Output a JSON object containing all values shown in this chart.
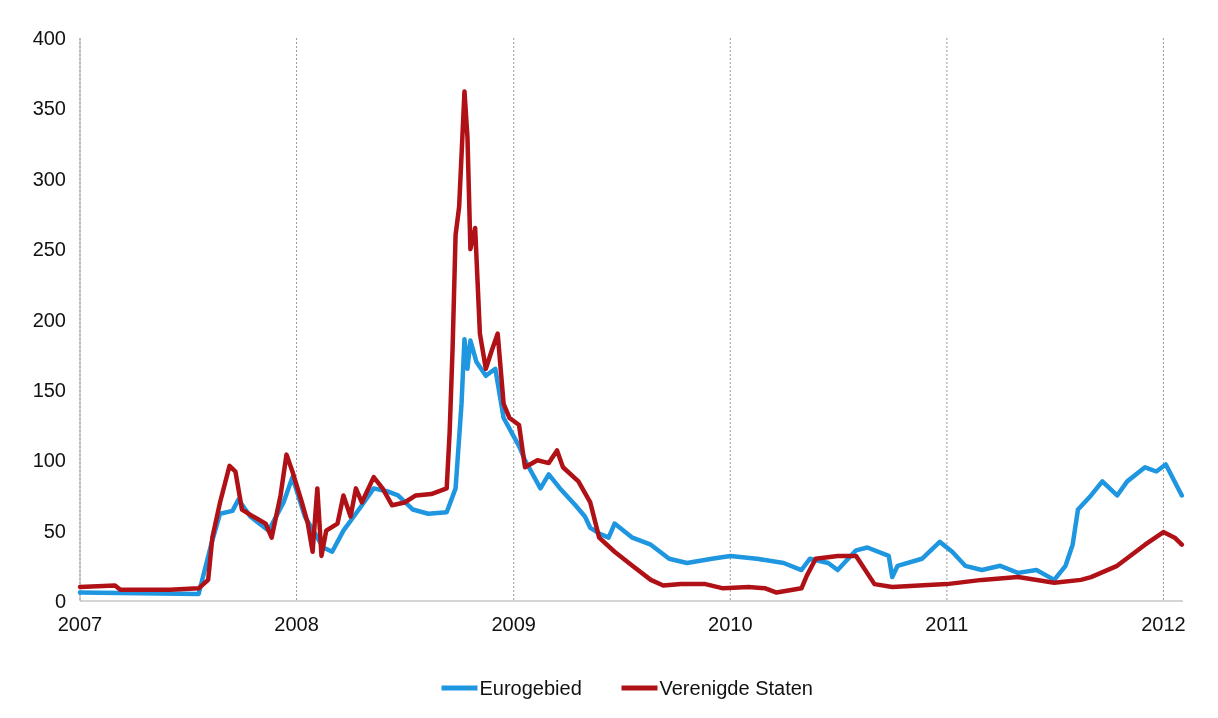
{
  "chart_data": {
    "type": "line",
    "xlim": [
      "2007-01-01",
      "2012-02-03"
    ],
    "xticks": [
      "2007",
      "2008",
      "2009",
      "2010",
      "2011",
      "2012"
    ],
    "ylim": [
      0,
      400
    ],
    "yticks": [
      0,
      50,
      100,
      150,
      200,
      250,
      300,
      350,
      400
    ],
    "grid": "x",
    "legend": "bottom",
    "line_style": "solid",
    "marker": "none",
    "series": [
      {
        "name": "Eurogebied",
        "color": "#1f96e0",
        "x": [
          "2007-01-01",
          "2007-07-20",
          "2007-08-10",
          "2007-08-25",
          "2007-09-15",
          "2007-09-25",
          "2007-10-15",
          "2007-11-15",
          "2007-12-10",
          "2007-12-25",
          "2008-01-15",
          "2008-02-15",
          "2008-03-01",
          "2008-03-20",
          "2008-04-15",
          "2008-05-10",
          "2008-06-01",
          "2008-06-20",
          "2008-07-15",
          "2008-08-10",
          "2008-09-10",
          "2008-09-25",
          "2008-10-05",
          "2008-10-10",
          "2008-10-15",
          "2008-10-20",
          "2008-10-30",
          "2008-11-15",
          "2008-12-01",
          "2008-12-15",
          "2009-01-10",
          "2009-01-20",
          "2009-02-15",
          "2009-03-01",
          "2009-03-20",
          "2009-04-15",
          "2009-05-01",
          "2009-05-10",
          "2009-05-25",
          "2009-06-10",
          "2009-06-20",
          "2009-07-20",
          "2009-08-20",
          "2009-09-20",
          "2009-10-20",
          "2009-12-01",
          "2010-01-01",
          "2010-02-15",
          "2010-04-01",
          "2010-05-01",
          "2010-05-15",
          "2010-06-15",
          "2010-07-01",
          "2010-08-01",
          "2010-08-20",
          "2010-09-25",
          "2010-10-01",
          "2010-10-10",
          "2010-11-20",
          "2010-12-20",
          "2011-01-10",
          "2011-02-01",
          "2011-03-01",
          "2011-04-01",
          "2011-05-01",
          "2011-06-01",
          "2011-07-01",
          "2011-07-20",
          "2011-08-01",
          "2011-08-10",
          "2011-09-01",
          "2011-09-20",
          "2011-10-15",
          "2011-11-01",
          "2011-12-01",
          "2011-12-20",
          "2012-01-05",
          "2012-02-01"
        ],
        "values": [
          6,
          5,
          40,
          62,
          64,
          72,
          60,
          50,
          70,
          88,
          60,
          38,
          35,
          50,
          65,
          80,
          78,
          75,
          65,
          62,
          63,
          80,
          140,
          186,
          165,
          185,
          170,
          160,
          165,
          130,
          110,
          100,
          80,
          90,
          80,
          68,
          60,
          52,
          48,
          45,
          55,
          45,
          40,
          30,
          27,
          30,
          32,
          30,
          27,
          22,
          30,
          27,
          22,
          36,
          38,
          32,
          17,
          25,
          30,
          42,
          35,
          25,
          22,
          25,
          20,
          22,
          15,
          25,
          40,
          65,
          75,
          85,
          75,
          85,
          95,
          92,
          97,
          75
        ]
      },
      {
        "name": "Verenigde Staten",
        "color": "#b01116",
        "x": [
          "2007-01-01",
          "2007-03-01",
          "2007-03-10",
          "2007-06-01",
          "2007-07-20",
          "2007-08-05",
          "2007-08-12",
          "2007-08-25",
          "2007-09-10",
          "2007-09-20",
          "2007-10-01",
          "2007-10-20",
          "2007-11-10",
          "2007-11-20",
          "2007-12-05",
          "2007-12-15",
          "2007-12-25",
          "2008-01-10",
          "2008-01-20",
          "2008-01-28",
          "2008-02-05",
          "2008-02-12",
          "2008-02-20",
          "2008-03-10",
          "2008-03-20",
          "2008-04-01",
          "2008-04-10",
          "2008-04-20",
          "2008-05-10",
          "2008-05-25",
          "2008-06-10",
          "2008-07-01",
          "2008-07-20",
          "2008-08-15",
          "2008-09-10",
          "2008-09-15",
          "2008-09-20",
          "2008-09-25",
          "2008-10-01",
          "2008-10-10",
          "2008-10-15",
          "2008-10-20",
          "2008-10-28",
          "2008-11-05",
          "2008-11-15",
          "2008-11-25",
          "2008-12-05",
          "2008-12-15",
          "2008-12-25",
          "2009-01-10",
          "2009-01-20",
          "2009-02-10",
          "2009-03-01",
          "2009-03-15",
          "2009-03-25",
          "2009-04-20",
          "2009-05-10",
          "2009-05-25",
          "2009-06-20",
          "2009-07-20",
          "2009-08-20",
          "2009-09-10",
          "2009-10-10",
          "2009-11-20",
          "2009-12-20",
          "2010-02-01",
          "2010-03-01",
          "2010-03-20",
          "2010-05-01",
          "2010-05-10",
          "2010-05-25",
          "2010-07-01",
          "2010-08-01",
          "2010-09-01",
          "2010-10-01",
          "2010-11-15",
          "2011-01-01",
          "2011-03-01",
          "2011-05-01",
          "2011-07-01",
          "2011-08-15",
          "2011-09-01",
          "2011-10-15",
          "2011-12-01",
          "2012-01-01",
          "2012-01-20",
          "2012-02-01"
        ],
        "values": [
          10,
          11,
          8,
          8,
          9,
          15,
          45,
          70,
          96,
          92,
          65,
          60,
          55,
          45,
          75,
          104,
          92,
          70,
          55,
          35,
          80,
          32,
          50,
          55,
          75,
          60,
          80,
          70,
          88,
          80,
          68,
          70,
          75,
          76,
          80,
          120,
          180,
          260,
          280,
          362,
          330,
          250,
          265,
          190,
          165,
          178,
          190,
          140,
          130,
          125,
          95,
          100,
          98,
          107,
          95,
          85,
          70,
          45,
          35,
          25,
          15,
          11,
          12,
          12,
          9,
          10,
          9,
          6,
          9,
          18,
          30,
          32,
          32,
          12,
          10,
          11,
          12,
          15,
          17,
          13,
          15,
          17,
          25,
          40,
          49,
          45,
          40
        ]
      }
    ]
  }
}
